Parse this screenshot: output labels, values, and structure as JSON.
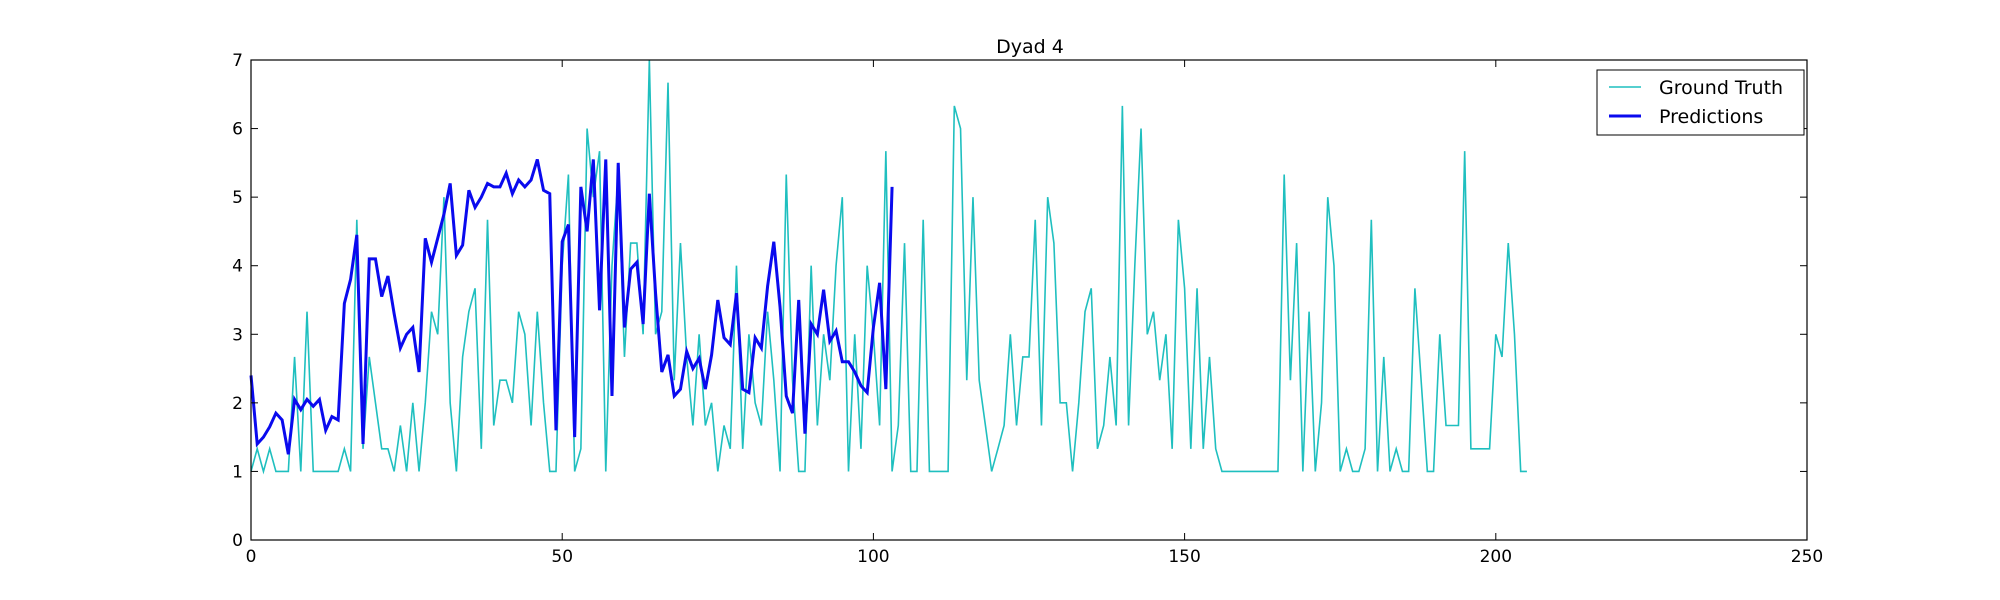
{
  "chart_data": {
    "type": "line",
    "title": "Dyad 4",
    "xlabel": "",
    "ylabel": "",
    "xlim": [
      0,
      250
    ],
    "ylim": [
      0,
      7
    ],
    "xticks": [
      0,
      50,
      100,
      150,
      200,
      250
    ],
    "yticks": [
      0,
      1,
      2,
      3,
      4,
      5,
      6,
      7
    ],
    "grid": false,
    "legend_position": "top-right",
    "series": [
      {
        "name": "Ground Truth",
        "color": "#1fbfbf",
        "y": [
          1.0,
          1.33,
          1.0,
          1.33,
          1.0,
          1.0,
          1.0,
          2.67,
          1.0,
          3.33,
          1.0,
          1.0,
          1.0,
          1.0,
          1.0,
          1.33,
          1.0,
          4.67,
          1.33,
          2.67,
          2.0,
          1.33,
          1.33,
          1.0,
          1.67,
          1.0,
          2.0,
          1.0,
          2.0,
          3.33,
          3.0,
          5.0,
          2.0,
          1.0,
          2.67,
          3.33,
          3.67,
          1.33,
          4.67,
          1.67,
          2.33,
          2.33,
          2.0,
          3.33,
          3.0,
          1.67,
          3.33,
          2.0,
          1.0,
          1.0,
          4.0,
          5.33,
          1.0,
          1.33,
          6.0,
          5.0,
          5.67,
          1.0,
          4.0,
          5.33,
          2.67,
          4.33,
          4.33,
          3.0,
          7.0,
          3.0,
          3.33,
          6.67,
          2.33,
          4.33,
          2.67,
          1.67,
          3.0,
          1.67,
          2.0,
          1.0,
          1.67,
          1.33,
          4.0,
          1.33,
          3.0,
          2.0,
          1.67,
          3.33,
          2.33,
          1.0,
          5.33,
          2.33,
          1.0,
          1.0,
          4.0,
          1.67,
          3.0,
          2.33,
          4.0,
          5.0,
          1.0,
          3.0,
          1.33,
          4.0,
          3.0,
          1.67,
          5.67,
          1.0,
          1.67,
          4.33,
          1.0,
          1.0,
          4.67,
          1.0,
          1.0,
          1.0,
          1.0,
          6.33,
          6.0,
          2.33,
          5.0,
          2.33,
          1.67,
          1.0,
          1.33,
          1.67,
          3.0,
          1.67,
          2.67,
          2.67,
          4.67,
          1.67,
          5.0,
          4.33,
          2.0,
          2.0,
          1.0,
          2.0,
          3.33,
          3.67,
          1.33,
          1.67,
          2.67,
          1.67,
          6.33,
          1.67,
          4.0,
          6.0,
          3.0,
          3.33,
          2.33,
          3.0,
          1.33,
          4.67,
          3.67,
          1.33,
          3.67,
          1.33,
          2.67,
          1.33,
          1.0,
          1.0,
          1.0,
          1.0,
          1.0,
          1.0,
          1.0,
          1.0,
          1.0,
          1.0,
          5.33,
          2.33,
          4.33,
          1.0,
          3.33,
          1.0,
          2.0,
          5.0,
          4.0,
          1.0,
          1.33,
          1.0,
          1.0,
          1.33,
          4.67,
          1.0,
          2.67,
          1.0,
          1.33,
          1.0,
          1.0,
          3.67,
          2.33,
          1.0,
          1.0,
          3.0,
          1.67,
          1.67,
          1.67,
          5.67,
          1.33,
          1.33,
          1.33,
          1.33,
          3.0,
          2.67,
          4.33,
          3.0,
          1.0,
          1.0
        ]
      },
      {
        "name": "Predictions",
        "color": "#0a0aee",
        "y": [
          2.4,
          1.4,
          1.5,
          1.65,
          1.85,
          1.75,
          1.25,
          2.05,
          1.9,
          2.05,
          1.95,
          2.05,
          1.6,
          1.8,
          1.75,
          3.45,
          3.8,
          4.45,
          1.4,
          4.1,
          4.1,
          3.55,
          3.85,
          3.3,
          2.8,
          3.0,
          3.1,
          2.45,
          4.4,
          4.05,
          4.4,
          4.75,
          5.2,
          4.15,
          4.3,
          5.1,
          4.85,
          5.0,
          5.2,
          5.15,
          5.15,
          5.35,
          5.05,
          5.25,
          5.15,
          5.25,
          5.55,
          5.1,
          5.05,
          1.6,
          4.35,
          4.6,
          1.5,
          5.15,
          4.5,
          5.55,
          3.35,
          5.55,
          2.1,
          5.5,
          3.1,
          3.95,
          4.05,
          3.15,
          5.05,
          3.6,
          2.45,
          2.7,
          2.1,
          2.2,
          2.75,
          2.5,
          2.65,
          2.2,
          2.7,
          3.5,
          2.95,
          2.85,
          3.6,
          2.2,
          2.15,
          2.95,
          2.8,
          3.7,
          4.35,
          3.4,
          2.1,
          1.85,
          3.5,
          1.55,
          3.15,
          3.0,
          3.65,
          2.9,
          3.05,
          2.6,
          2.6,
          2.45,
          2.25,
          2.15,
          3.1,
          3.75,
          2.2,
          5.15
        ]
      }
    ]
  }
}
